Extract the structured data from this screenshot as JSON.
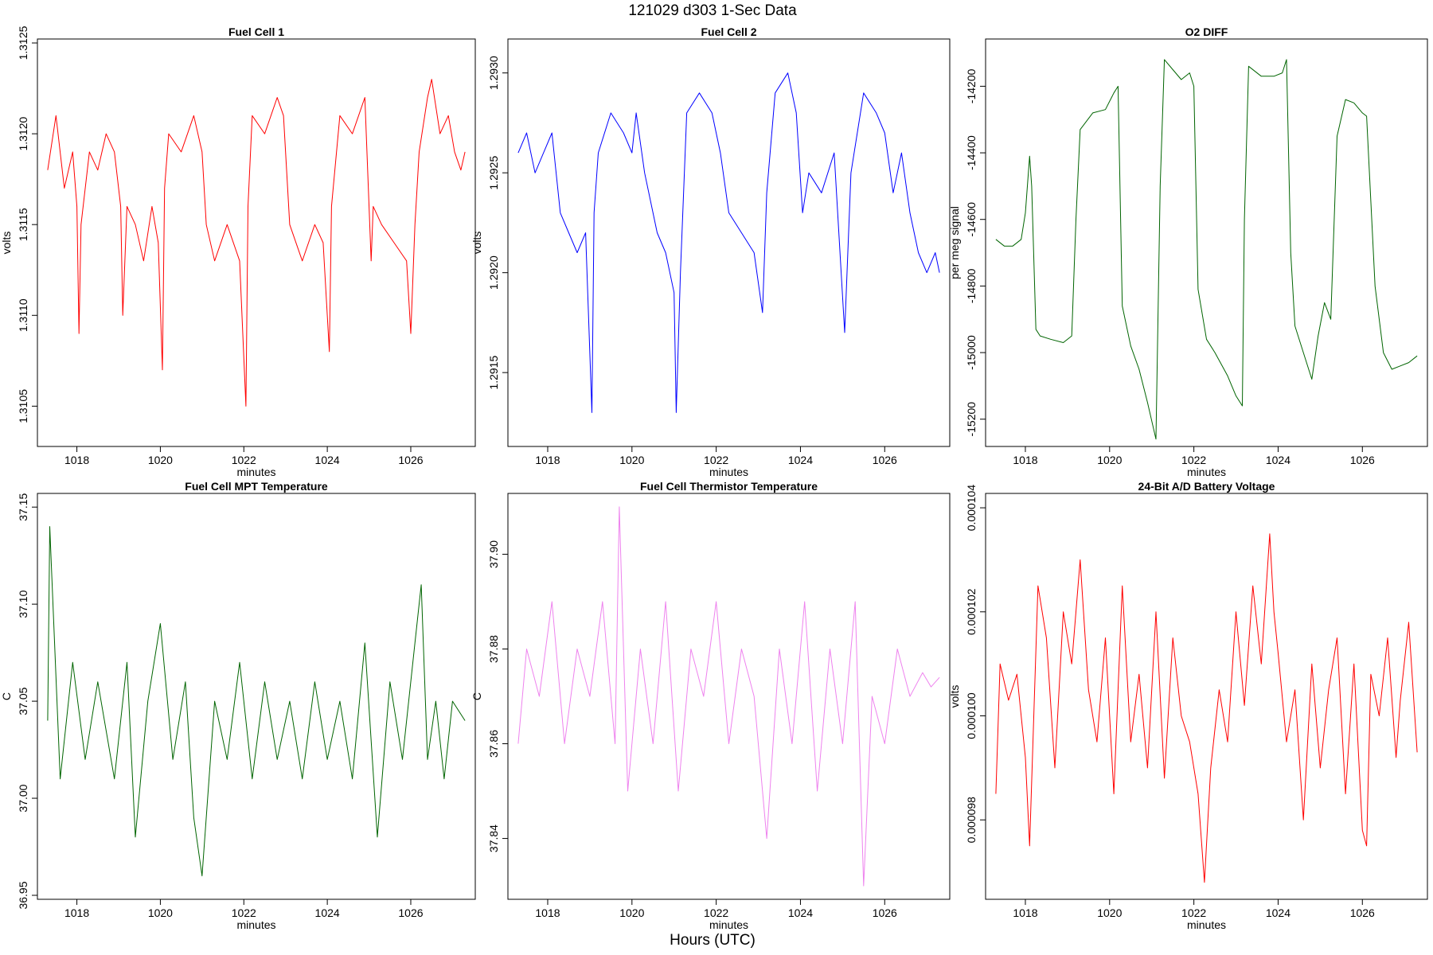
{
  "figure": {
    "title": "121029   d303   1-Sec Data",
    "xlabel": "Hours (UTC)"
  },
  "chart_data": [
    {
      "type": "line",
      "title": "Fuel Cell 1",
      "xlabel": "minutes",
      "ylabel": "volts",
      "color": "#ff0000",
      "xlim": [
        1017.15,
        1027.45
      ],
      "ylim": [
        1.3103,
        1.3125
      ],
      "xticks": [
        "1018",
        "1020",
        "1022",
        "1024",
        "1026"
      ],
      "yticks": [
        "1.3105",
        "1.3110",
        "1.3115",
        "1.3120",
        "1.3125"
      ],
      "x": [
        1017.3,
        1017.5,
        1017.7,
        1017.9,
        1018.0,
        1018.05,
        1018.1,
        1018.3,
        1018.5,
        1018.7,
        1018.9,
        1019.05,
        1019.1,
        1019.2,
        1019.4,
        1019.6,
        1019.8,
        1019.95,
        1020.05,
        1020.1,
        1020.2,
        1020.5,
        1020.8,
        1021.0,
        1021.1,
        1021.3,
        1021.6,
        1021.9,
        1022.05,
        1022.1,
        1022.2,
        1022.5,
        1022.8,
        1022.95,
        1023.1,
        1023.4,
        1023.7,
        1023.9,
        1024.05,
        1024.1,
        1024.3,
        1024.6,
        1024.9,
        1025.05,
        1025.1,
        1025.3,
        1025.6,
        1025.9,
        1026.0,
        1026.1,
        1026.2,
        1026.4,
        1026.5,
        1026.7,
        1026.9,
        1027.05,
        1027.2,
        1027.3
      ],
      "y": [
        1.3118,
        1.3121,
        1.3117,
        1.3119,
        1.3116,
        1.3109,
        1.3115,
        1.3119,
        1.3118,
        1.312,
        1.3119,
        1.3116,
        1.311,
        1.3116,
        1.3115,
        1.3113,
        1.3116,
        1.3114,
        1.3107,
        1.3117,
        1.312,
        1.3119,
        1.3121,
        1.3119,
        1.3115,
        1.3113,
        1.3115,
        1.3113,
        1.3105,
        1.3116,
        1.3121,
        1.312,
        1.3122,
        1.3121,
        1.3115,
        1.3113,
        1.3115,
        1.3114,
        1.3108,
        1.3116,
        1.3121,
        1.312,
        1.3122,
        1.3113,
        1.3116,
        1.3115,
        1.3114,
        1.3113,
        1.3109,
        1.3115,
        1.3119,
        1.3122,
        1.3123,
        1.312,
        1.3121,
        1.3119,
        1.3118,
        1.3119
      ]
    },
    {
      "type": "line",
      "title": "Fuel Cell 2",
      "xlabel": "minutes",
      "ylabel": "volts",
      "color": "#0000ff",
      "xlim": [
        1017.15,
        1027.45
      ],
      "ylim": [
        1.29115,
        1.29315
      ],
      "xticks": [
        "1018",
        "1020",
        "1022",
        "1024",
        "1026"
      ],
      "yticks": [
        "1.2915",
        "1.2920",
        "1.2925",
        "1.2930"
      ],
      "x": [
        1017.3,
        1017.5,
        1017.7,
        1017.9,
        1018.1,
        1018.3,
        1018.5,
        1018.7,
        1018.9,
        1019.05,
        1019.1,
        1019.2,
        1019.5,
        1019.8,
        1020.0,
        1020.1,
        1020.3,
        1020.6,
        1020.8,
        1021.0,
        1021.05,
        1021.15,
        1021.3,
        1021.6,
        1021.9,
        1022.1,
        1022.3,
        1022.6,
        1022.9,
        1023.1,
        1023.2,
        1023.4,
        1023.7,
        1023.9,
        1024.05,
        1024.2,
        1024.5,
        1024.8,
        1025.05,
        1025.2,
        1025.5,
        1025.8,
        1026.0,
        1026.2,
        1026.4,
        1026.6,
        1026.8,
        1027.0,
        1027.2,
        1027.3
      ],
      "y": [
        1.2926,
        1.2927,
        1.2925,
        1.2926,
        1.2927,
        1.2923,
        1.2922,
        1.2921,
        1.2922,
        1.2913,
        1.2923,
        1.2926,
        1.2928,
        1.2927,
        1.2926,
        1.2928,
        1.2925,
        1.2922,
        1.2921,
        1.2919,
        1.2913,
        1.292,
        1.2928,
        1.2929,
        1.2928,
        1.2926,
        1.2923,
        1.2922,
        1.2921,
        1.2918,
        1.2924,
        1.2929,
        1.293,
        1.2928,
        1.2923,
        1.2925,
        1.2924,
        1.2926,
        1.2917,
        1.2925,
        1.2929,
        1.2928,
        1.2927,
        1.2924,
        1.2926,
        1.2923,
        1.2921,
        1.292,
        1.2921,
        1.292
      ]
    },
    {
      "type": "line",
      "title": "O2 DIFF",
      "xlabel": "minutes",
      "ylabel": "per meg signal",
      "color": "#006400",
      "xlim": [
        1017.15,
        1027.45
      ],
      "ylim": [
        -15270,
        -14070
      ],
      "xticks": [
        "1018",
        "1020",
        "1022",
        "1024",
        "1026"
      ],
      "yticks": [
        "-14200",
        "-14400",
        "-14600",
        "-14800",
        "-15000",
        "-15200"
      ],
      "x": [
        1017.3,
        1017.5,
        1017.7,
        1017.9,
        1018.0,
        1018.1,
        1018.15,
        1018.25,
        1018.35,
        1018.6,
        1018.9,
        1019.1,
        1019.2,
        1019.3,
        1019.6,
        1019.9,
        1020.1,
        1020.2,
        1020.3,
        1020.5,
        1020.7,
        1020.9,
        1021.1,
        1021.2,
        1021.3,
        1021.5,
        1021.7,
        1021.9,
        1022.0,
        1022.1,
        1022.3,
        1022.5,
        1022.8,
        1023.0,
        1023.15,
        1023.2,
        1023.3,
        1023.6,
        1023.9,
        1024.1,
        1024.2,
        1024.3,
        1024.4,
        1024.6,
        1024.8,
        1024.95,
        1025.1,
        1025.25,
        1025.4,
        1025.6,
        1025.8,
        1026.0,
        1026.1,
        1026.3,
        1026.5,
        1026.7,
        1026.9,
        1027.1,
        1027.3
      ],
      "y": [
        -14660,
        -14680,
        -14680,
        -14660,
        -14580,
        -14410,
        -14500,
        -14930,
        -14950,
        -14960,
        -14970,
        -14950,
        -14600,
        -14330,
        -14280,
        -14270,
        -14220,
        -14200,
        -14860,
        -14980,
        -15050,
        -15150,
        -15260,
        -14500,
        -14120,
        -14150,
        -14180,
        -14160,
        -14200,
        -14810,
        -14960,
        -15000,
        -15070,
        -15130,
        -15160,
        -14600,
        -14140,
        -14170,
        -14170,
        -14160,
        -14120,
        -14700,
        -14920,
        -15000,
        -15080,
        -14950,
        -14850,
        -14900,
        -14350,
        -14240,
        -14250,
        -14280,
        -14290,
        -14800,
        -15000,
        -15050,
        -15040,
        -15030,
        -15010
      ]
    },
    {
      "type": "line",
      "title": "Fuel Cell MPT Temperature",
      "xlabel": "minutes",
      "ylabel": "C",
      "color": "#006400",
      "xlim": [
        1017.15,
        1027.45
      ],
      "ylim": [
        36.95,
        37.155
      ],
      "xticks": [
        "1018",
        "1020",
        "1022",
        "1024",
        "1026"
      ],
      "yticks": [
        "36.95",
        "37.00",
        "37.05",
        "37.10",
        "37.15"
      ],
      "x": [
        1017.3,
        1017.35,
        1017.6,
        1017.9,
        1018.2,
        1018.5,
        1018.9,
        1019.2,
        1019.4,
        1019.7,
        1020.0,
        1020.3,
        1020.6,
        1020.8,
        1021.0,
        1021.3,
        1021.6,
        1021.9,
        1022.2,
        1022.5,
        1022.8,
        1023.1,
        1023.4,
        1023.7,
        1024.0,
        1024.3,
        1024.6,
        1024.9,
        1025.2,
        1025.5,
        1025.8,
        1026.1,
        1026.25,
        1026.4,
        1026.6,
        1026.8,
        1027.0,
        1027.3
      ],
      "y": [
        37.04,
        37.14,
        37.01,
        37.07,
        37.02,
        37.06,
        37.01,
        37.07,
        36.98,
        37.05,
        37.09,
        37.02,
        37.06,
        36.99,
        36.96,
        37.05,
        37.02,
        37.07,
        37.01,
        37.06,
        37.02,
        37.05,
        37.01,
        37.06,
        37.02,
        37.05,
        37.01,
        37.08,
        36.98,
        37.06,
        37.02,
        37.08,
        37.11,
        37.02,
        37.05,
        37.01,
        37.05,
        37.04
      ]
    },
    {
      "type": "line",
      "title": "Fuel Cell Thermistor Temperature",
      "xlabel": "minutes",
      "ylabel": "C",
      "color": "#ee82ee",
      "xlim": [
        1017.15,
        1027.45
      ],
      "ylim": [
        37.828,
        37.912
      ],
      "xticks": [
        "1018",
        "1020",
        "1022",
        "1024",
        "1026"
      ],
      "yticks": [
        "37.84",
        "37.86",
        "37.88",
        "37.90"
      ],
      "x": [
        1017.3,
        1017.5,
        1017.8,
        1018.1,
        1018.4,
        1018.7,
        1019.0,
        1019.3,
        1019.6,
        1019.7,
        1019.9,
        1020.2,
        1020.5,
        1020.8,
        1021.1,
        1021.4,
        1021.7,
        1022.0,
        1022.3,
        1022.6,
        1022.9,
        1023.2,
        1023.5,
        1023.8,
        1024.1,
        1024.4,
        1024.7,
        1025.0,
        1025.3,
        1025.5,
        1025.7,
        1026.0,
        1026.3,
        1026.6,
        1026.9,
        1027.1,
        1027.3
      ],
      "y": [
        37.86,
        37.88,
        37.87,
        37.89,
        37.86,
        37.88,
        37.87,
        37.89,
        37.86,
        37.91,
        37.85,
        37.88,
        37.86,
        37.89,
        37.85,
        37.88,
        37.87,
        37.89,
        37.86,
        37.88,
        37.87,
        37.84,
        37.88,
        37.86,
        37.89,
        37.85,
        37.88,
        37.86,
        37.89,
        37.83,
        37.87,
        37.86,
        37.88,
        37.87,
        37.875,
        37.872,
        37.874
      ]
    },
    {
      "type": "line",
      "title": "24-Bit A/D Battery Voltage",
      "xlabel": "minutes",
      "ylabel": "volts",
      "color": "#ff0000",
      "xlim": [
        1017.15,
        1027.45
      ],
      "ylim": [
        9.655e-05,
        0.0001042
      ],
      "xticks": [
        "1018",
        "1020",
        "1022",
        "1024",
        "1026"
      ],
      "yticks": [
        "0.000098",
        "0.000100",
        "0.000102",
        "0.000104"
      ],
      "x": [
        1017.3,
        1017.4,
        1017.6,
        1017.8,
        1018.0,
        1018.1,
        1018.3,
        1018.5,
        1018.7,
        1018.9,
        1019.1,
        1019.3,
        1019.5,
        1019.7,
        1019.9,
        1020.1,
        1020.3,
        1020.5,
        1020.7,
        1020.9,
        1021.1,
        1021.3,
        1021.5,
        1021.7,
        1021.9,
        1022.1,
        1022.25,
        1022.4,
        1022.6,
        1022.8,
        1023.0,
        1023.2,
        1023.4,
        1023.6,
        1023.8,
        1023.9,
        1024.0,
        1024.2,
        1024.4,
        1024.6,
        1024.8,
        1025.0,
        1025.2,
        1025.4,
        1025.6,
        1025.8,
        1026.0,
        1026.1,
        1026.2,
        1026.4,
        1026.6,
        1026.8,
        1026.9,
        1027.1,
        1027.3
      ],
      "y": [
        9.85e-05,
        0.000101,
        0.0001003,
        0.0001008,
        9.92e-05,
        9.75e-05,
        0.0001025,
        0.0001015,
        9.9e-05,
        0.000102,
        0.000101,
        0.000103,
        0.0001005,
        9.95e-05,
        0.0001015,
        9.85e-05,
        0.0001025,
        9.95e-05,
        0.0001008,
        9.9e-05,
        0.000102,
        9.88e-05,
        0.0001015,
        0.0001,
        9.95e-05,
        9.85e-05,
        9.68e-05,
        9.9e-05,
        0.0001005,
        9.95e-05,
        0.000102,
        0.0001002,
        0.0001025,
        0.000101,
        0.0001035,
        0.000102,
        0.0001012,
        9.95e-05,
        0.0001005,
        9.8e-05,
        0.000101,
        9.9e-05,
        0.0001005,
        0.0001015,
        9.85e-05,
        0.000101,
        9.78e-05,
        9.75e-05,
        0.0001008,
        0.0001,
        0.0001015,
        9.92e-05,
        0.0001003,
        0.0001018,
        9.93e-05
      ]
    }
  ]
}
